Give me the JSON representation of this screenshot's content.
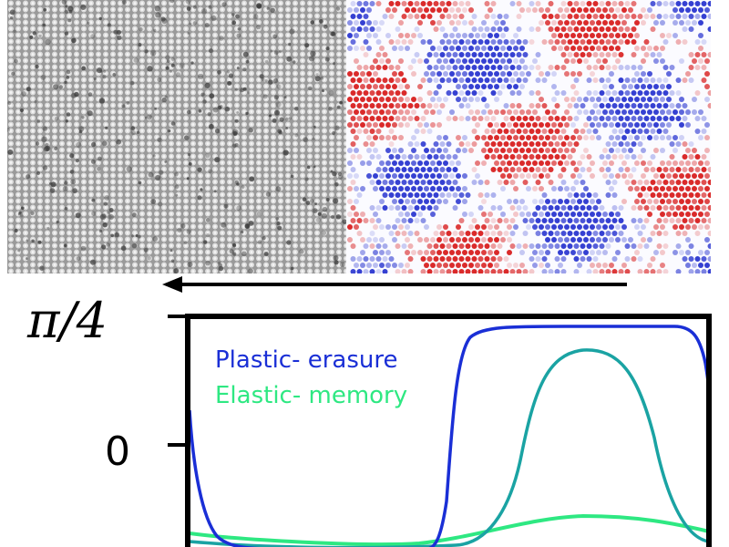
{
  "ytick_top": "π/4",
  "ytick_mid": "0",
  "legend": {
    "plastic": "Plastic- erasure",
    "elastic": "Elastic- memory"
  },
  "colors": {
    "plastic": "#1a2fd6",
    "elastic": "#2ee882",
    "teal": "#1aa3a3",
    "map_red": "#d81f1f",
    "map_blue": "#2a36d0",
    "grey_dot": "#3a3a3a"
  }
}
